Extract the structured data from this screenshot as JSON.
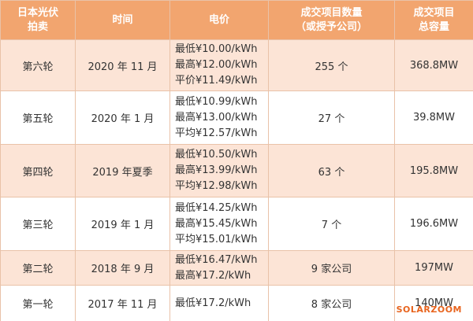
{
  "table": {
    "header": [
      [
        "日本光伏",
        "拍卖"
      ],
      [
        "时间"
      ],
      [
        "电价"
      ],
      [
        "成交项目数量",
        "（或授予公司）"
      ],
      [
        "成交项目",
        "总容量"
      ]
    ],
    "rows": [
      [
        "第六轮",
        "2020 年 11 月",
        [
          "最低¥10.00/kWh",
          "最高¥12.00/kWh",
          "平价¥11.49/kWh"
        ],
        "255 个",
        "368.8MW"
      ],
      [
        "第五轮",
        "2020 年 1 月",
        [
          "最低¥10.99/kWh",
          "最高¥13.00/kWh",
          "平均¥12.57/kWh"
        ],
        "27 个",
        "39.8MW"
      ],
      [
        "第四轮",
        "2019 年夏季",
        [
          "最低¥10.50/kWh",
          "最高¥13.99/kWh",
          "平均¥12.98/kWh"
        ],
        "63 个",
        "195.8MW"
      ],
      [
        "第三轮",
        "2019 年 1 月",
        [
          "最低¥14.25/kWh",
          "最高¥15.45/kWh",
          "平均¥15.01/kWh"
        ],
        "7 个",
        "196.6MW"
      ],
      [
        "第二轮",
        "2018 年 9 月",
        [
          "最低¥16.47/kWh",
          "最高¥17.2/kWh"
        ],
        "9 家公司",
        "197MW"
      ],
      [
        "第一轮",
        "2017 年 11 月",
        [
          "最低¥17.2/kWh"
        ],
        "8 家公司",
        "140MW"
      ]
    ]
  },
  "watermark": "SOLARZOOM"
}
